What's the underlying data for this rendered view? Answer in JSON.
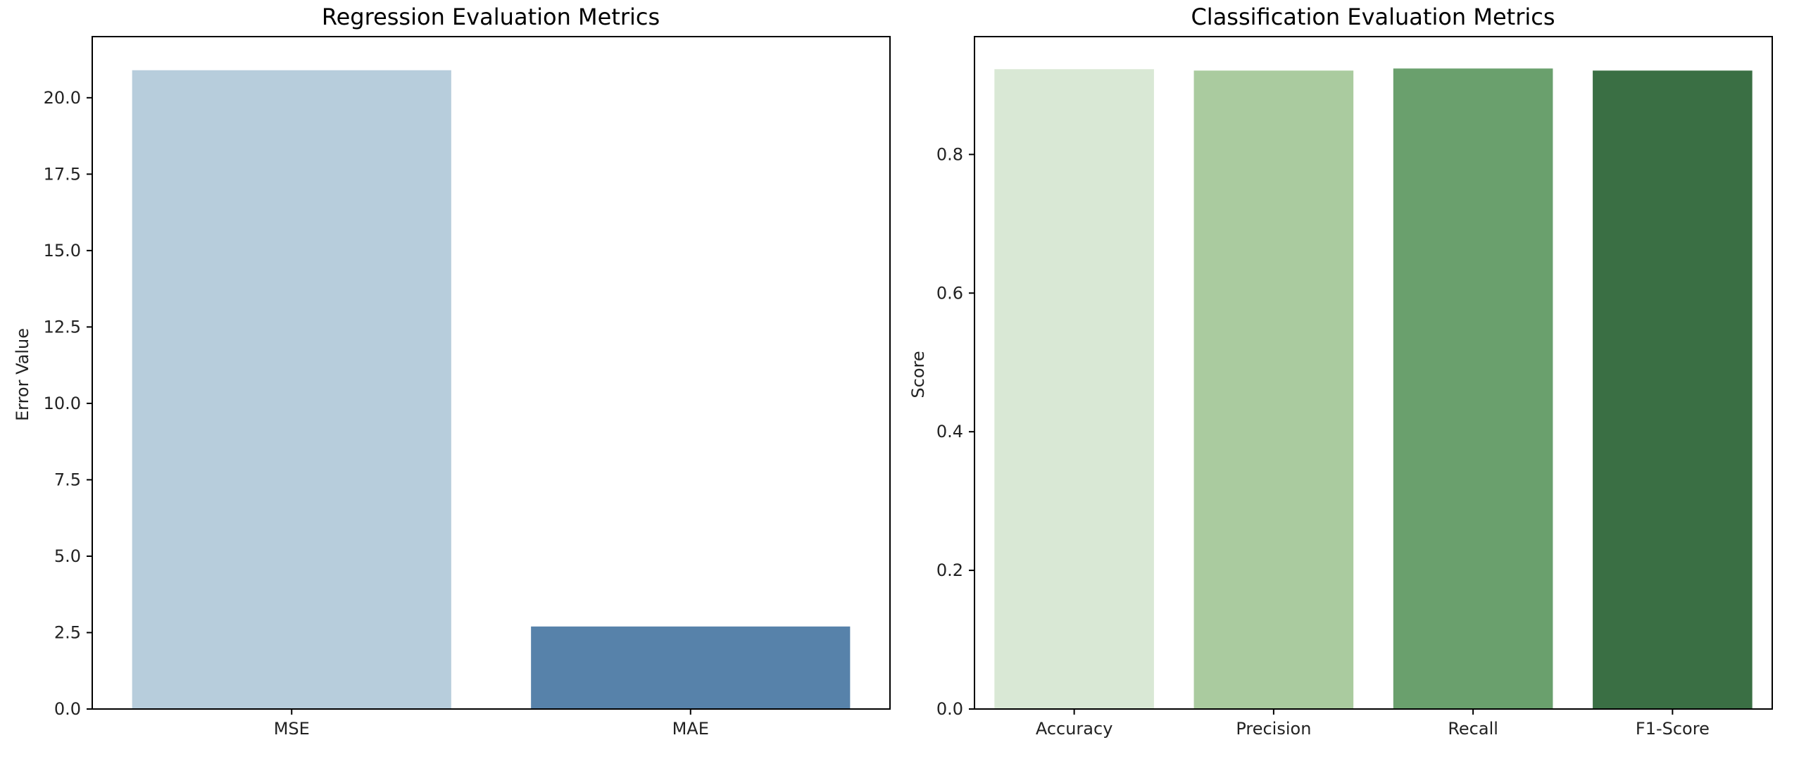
{
  "chart_data": [
    {
      "type": "bar",
      "title": "Regression Evaluation Metrics",
      "xlabel": "",
      "ylabel": "Error Value",
      "categories": [
        "MSE",
        "MAE"
      ],
      "values": [
        20.9,
        2.7
      ],
      "colors": [
        "#b7cddc",
        "#5782aa"
      ],
      "ylim": [
        0,
        22
      ],
      "yticks": [
        0,
        2.5,
        5,
        7.5,
        10,
        12.5,
        15,
        17.5,
        20
      ],
      "ytick_labels": [
        "0.0",
        "2.5",
        "5.0",
        "7.5",
        "10.0",
        "12.5",
        "15.0",
        "17.5",
        "20.0"
      ],
      "grid": false
    },
    {
      "type": "bar",
      "title": "Classification Evaluation Metrics",
      "xlabel": "",
      "ylabel": "Score",
      "categories": [
        "Accuracy",
        "Precision",
        "Recall",
        "F1-Score"
      ],
      "values": [
        0.923,
        0.921,
        0.924,
        0.921
      ],
      "colors": [
        "#d9e8d5",
        "#aacb9f",
        "#6aa06d",
        "#3a6f44"
      ],
      "ylim": [
        0,
        0.97
      ],
      "yticks": [
        0,
        0.2,
        0.4,
        0.6,
        0.8
      ],
      "ytick_labels": [
        "0.0",
        "0.2",
        "0.4",
        "0.6",
        "0.8"
      ],
      "grid": false
    }
  ]
}
